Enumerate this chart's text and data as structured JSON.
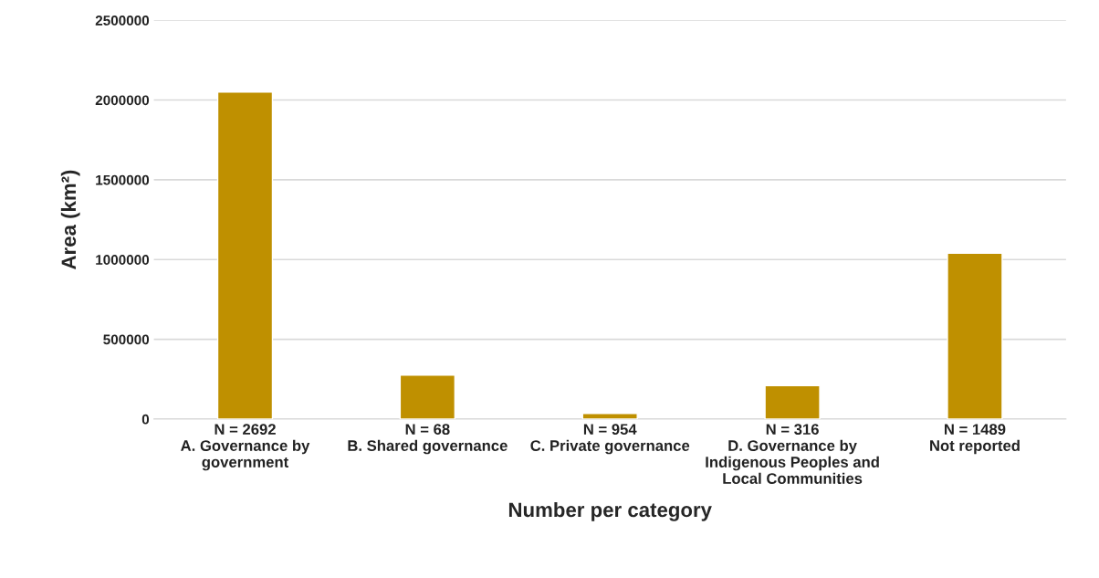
{
  "chart_data": {
    "type": "bar",
    "categories": [
      "N = 2692\nA. Governance by\ngovernment",
      "N = 68\nB. Shared governance",
      "N = 954\nC. Private governance",
      "N = 316\nD. Governance by\nIndigenous Peoples and\nLocal Communities",
      "N = 1489\nNot reported"
    ],
    "values": [
      2050000,
      275000,
      35000,
      210000,
      1040000
    ],
    "color": "#bf9000",
    "xlabel": "Number per category",
    "ylabel": "Area (km²)",
    "ylim": [
      0,
      2500000
    ],
    "yticks": [
      0,
      500000,
      1000000,
      1500000,
      2000000,
      2500000
    ],
    "grid": "y"
  }
}
